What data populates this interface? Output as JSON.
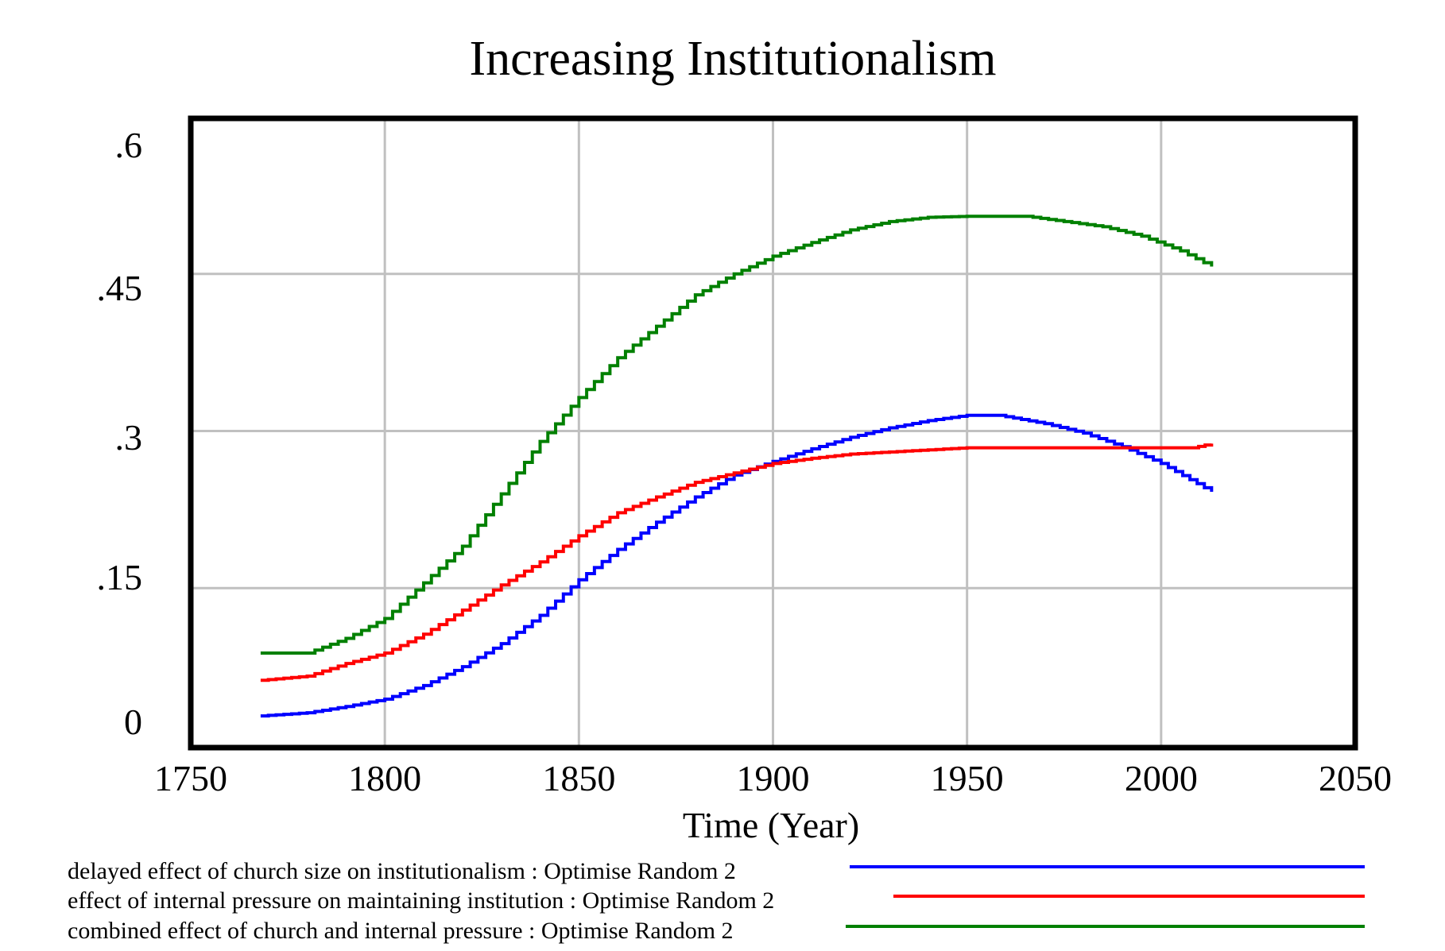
{
  "chart_data": {
    "type": "line",
    "title": "Increasing Institutionalism",
    "xlabel": "Time (Year)",
    "ylabel": "",
    "xlim": [
      1750,
      2050
    ],
    "ylim": [
      0,
      0.6
    ],
    "x_ticks": [
      1750,
      1800,
      1850,
      1900,
      1950,
      2000,
      2050
    ],
    "x_tick_labels": [
      "1750",
      "1800",
      "1850",
      "1900",
      "1950",
      "2000",
      "2050"
    ],
    "y_ticks": [
      0,
      0.15,
      0.3,
      0.45,
      0.6
    ],
    "y_tick_labels": [
      "0",
      ".15",
      ".3",
      ".45",
      ".6"
    ],
    "grid": true,
    "legend_position": "bottom",
    "series": [
      {
        "name": "delayed effect of church size on institutionalism : Optimise Random 2",
        "color": "#0000ff",
        "x": [
          1768,
          1780,
          1790,
          1800,
          1810,
          1820,
          1830,
          1840,
          1850,
          1860,
          1870,
          1880,
          1890,
          1900,
          1910,
          1920,
          1930,
          1940,
          1950,
          1958,
          1970,
          1980,
          1990,
          2000,
          2013
        ],
        "y": [
          0.028,
          0.031,
          0.037,
          0.044,
          0.057,
          0.075,
          0.097,
          0.124,
          0.158,
          0.187,
          0.213,
          0.237,
          0.258,
          0.271,
          0.283,
          0.294,
          0.303,
          0.31,
          0.315,
          0.315,
          0.307,
          0.298,
          0.285,
          0.269,
          0.242
        ]
      },
      {
        "name": "effect of internal pressure on maintaining institution : Optimise Random 2",
        "color": "#ff0000",
        "x": [
          1768,
          1780,
          1790,
          1800,
          1810,
          1820,
          1830,
          1840,
          1850,
          1860,
          1870,
          1880,
          1890,
          1900,
          1910,
          1920,
          1930,
          1940,
          1950,
          2008,
          2013
        ],
        "y": [
          0.062,
          0.066,
          0.078,
          0.088,
          0.106,
          0.129,
          0.153,
          0.175,
          0.2,
          0.222,
          0.237,
          0.251,
          0.26,
          0.269,
          0.274,
          0.278,
          0.28,
          0.282,
          0.284,
          0.284,
          0.288
        ]
      },
      {
        "name": "combined effect of church and internal pressure : Optimise Random 2",
        "color": "#008000",
        "x": [
          1768,
          1780,
          1790,
          1800,
          1810,
          1820,
          1830,
          1840,
          1850,
          1860,
          1870,
          1880,
          1890,
          1900,
          1910,
          1920,
          1930,
          1940,
          1950,
          1965,
          1975,
          1985,
          1995,
          2005,
          2013
        ],
        "y": [
          0.088,
          0.088,
          0.102,
          0.121,
          0.155,
          0.19,
          0.24,
          0.29,
          0.332,
          0.37,
          0.4,
          0.43,
          0.45,
          0.467,
          0.48,
          0.492,
          0.5,
          0.504,
          0.505,
          0.505,
          0.5,
          0.495,
          0.486,
          0.472,
          0.457
        ]
      }
    ]
  }
}
